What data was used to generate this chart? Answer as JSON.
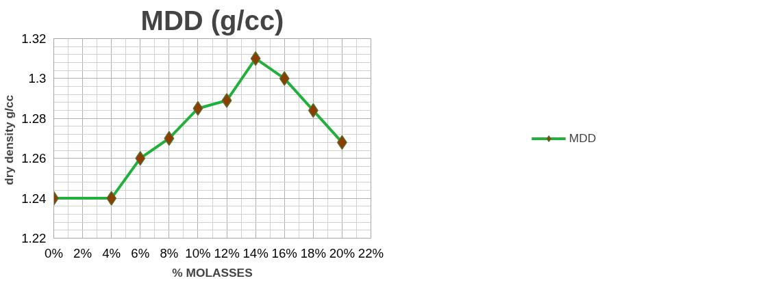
{
  "chart_data": {
    "type": "line",
    "title": "MDD (g/cc)",
    "xlabel": "% MOLASSES",
    "ylabel": "dry density  g/cc",
    "x": [
      0,
      4,
      6,
      8,
      10,
      12,
      14,
      16,
      18,
      20
    ],
    "series": [
      {
        "name": "MDD",
        "color": "#22b03c",
        "values": [
          1.24,
          1.24,
          1.26,
          1.27,
          1.285,
          1.289,
          1.31,
          1.3,
          1.284,
          1.268
        ]
      }
    ],
    "xlim": [
      0,
      22
    ],
    "xticks": [
      {
        "value": 0,
        "label": "0%"
      },
      {
        "value": 2,
        "label": "2%"
      },
      {
        "value": 4,
        "label": "4%"
      },
      {
        "value": 6,
        "label": "6%"
      },
      {
        "value": 8,
        "label": "8%"
      },
      {
        "value": 10,
        "label": "10%"
      },
      {
        "value": 12,
        "label": "12%"
      },
      {
        "value": 14,
        "label": "14%"
      },
      {
        "value": 16,
        "label": "16%"
      },
      {
        "value": 18,
        "label": "18%"
      },
      {
        "value": 20,
        "label": "20%"
      },
      {
        "value": 22,
        "label": "22%"
      }
    ],
    "ylim": [
      1.22,
      1.32
    ],
    "yticks": [
      1.22,
      1.24,
      1.26,
      1.28,
      {
        "value": 1.3,
        "label": "1.3"
      },
      1.32
    ],
    "grid": true,
    "legend": "right",
    "marker": "diamond",
    "line_style": "solid"
  }
}
